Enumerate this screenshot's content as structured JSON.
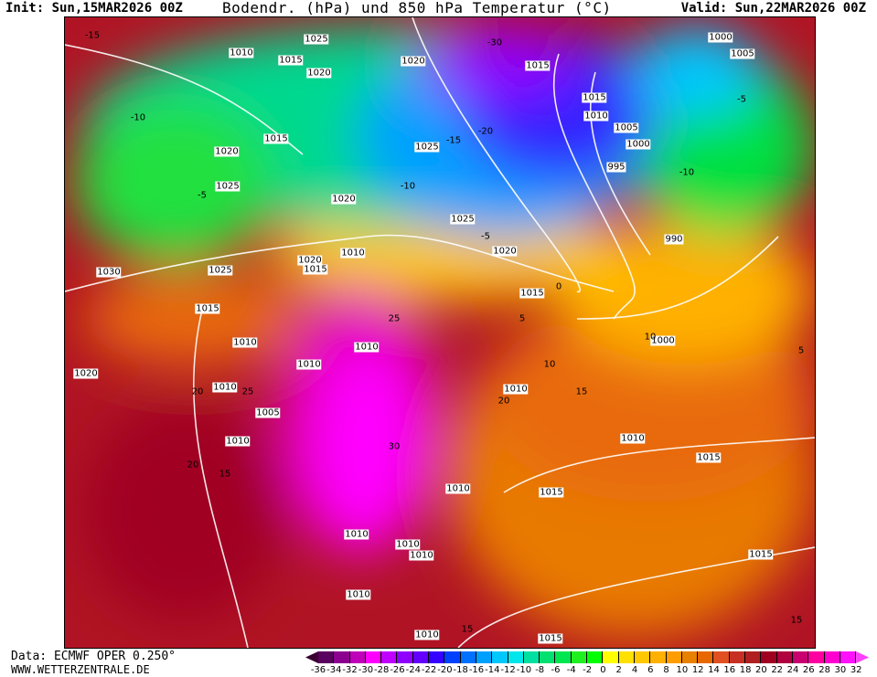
{
  "header": {
    "init": "Init: Sun,15MAR2026 00Z",
    "title": "Bodendr. (hPa) und 850 hPa Temperatur (°C)",
    "valid": "Valid: Sun,22MAR2026 00Z"
  },
  "footer": {
    "source": "Data: ECMWF OPER 0.250°",
    "site": "WWW.WETTERZENTRALE.DE"
  },
  "isobar_labels": [
    "1025",
    "1010",
    "1015",
    "1020",
    "1020",
    "1015",
    "1000",
    "1005",
    "1015",
    "1010",
    "1005",
    "1000",
    "995",
    "1015",
    "1025",
    "1020",
    "1025",
    "1020",
    "1025",
    "990",
    "1020",
    "1010",
    "1020",
    "1015",
    "1030",
    "1025",
    "1015",
    "1015",
    "1000",
    "1010",
    "1010",
    "1010",
    "1020",
    "1010",
    "1010",
    "1005",
    "1010",
    "1010",
    "1015",
    "1010",
    "1015",
    "1010",
    "1010",
    "1010",
    "1015",
    "1010",
    "1010",
    "1015"
  ],
  "temperature_labels": [
    "-15",
    "-10",
    "-5",
    "-30",
    "-20",
    "-15",
    "-10",
    "-5",
    "0",
    "5",
    "10",
    "15",
    "20",
    "25",
    "30",
    "20",
    "15",
    "10",
    "5",
    "-10",
    "-5",
    "20",
    "25",
    "15",
    "15"
  ],
  "legend": {
    "ticks": [
      "-36",
      "-34",
      "-32",
      "-30",
      "-28",
      "-26",
      "-24",
      "-22",
      "-20",
      "-18",
      "-16",
      "-14",
      "-12",
      "-10",
      "-8",
      "-6",
      "-4",
      "-2",
      "0",
      "2",
      "4",
      "6",
      "8",
      "10",
      "12",
      "14",
      "16",
      "18",
      "20",
      "22",
      "24",
      "26",
      "28",
      "30",
      "32"
    ],
    "colors": [
      "#5a005e",
      "#8c0090",
      "#c000b8",
      "#ff00ff",
      "#c000ff",
      "#9000ff",
      "#6400ff",
      "#3400ff",
      "#0040ff",
      "#0070ff",
      "#00a0ff",
      "#00c8ff",
      "#00e6ea",
      "#00e0a0",
      "#00e070",
      "#00e650",
      "#20f020",
      "#00ff00",
      "#ffff00",
      "#ffe000",
      "#ffc800",
      "#ffb000",
      "#ff9c00",
      "#e88000",
      "#e86800",
      "#e05020",
      "#c83024",
      "#b02020",
      "#a00020",
      "#b00040",
      "#c80070",
      "#ff00a0",
      "#ff00d0",
      "#ff10ff"
    ],
    "below_color": "#3a0030",
    "above_color": "#ff40ff"
  }
}
